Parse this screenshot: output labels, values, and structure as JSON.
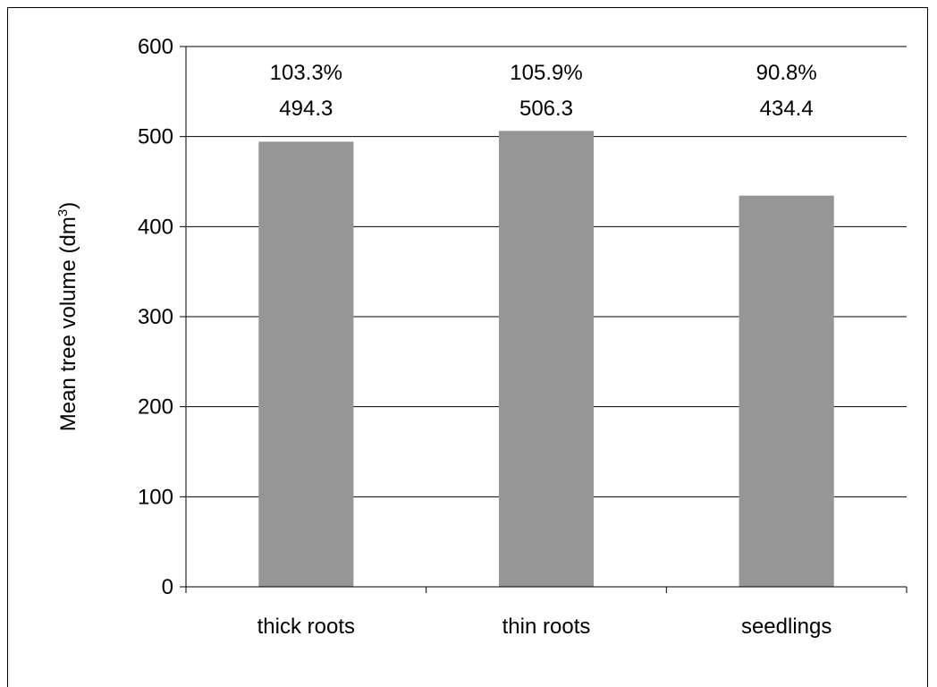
{
  "chart_data": {
    "type": "bar",
    "title": "",
    "xlabel": "",
    "ylabel": "Mean tree volume (dm",
    "ylabel_superscript": "3",
    "ylabel_suffix": ")",
    "categories": [
      "thick roots",
      "thin roots",
      "seedlings"
    ],
    "values": [
      494.3,
      506.3,
      434.4
    ],
    "percent_labels": [
      "103.3%",
      "105.9%",
      "90.8%"
    ],
    "value_labels": [
      "494.3",
      "506.3",
      "434.4"
    ],
    "ylim": [
      0,
      600
    ],
    "yticks": [
      0,
      100,
      200,
      300,
      400,
      500,
      600
    ],
    "ytick_labels": [
      "0",
      "100",
      "200",
      "300",
      "400",
      "500",
      "600"
    ],
    "grid": "horizontal",
    "legend": "none",
    "colors": {
      "bar": "#969696",
      "grid": "#000000",
      "axis": "#000000"
    }
  }
}
